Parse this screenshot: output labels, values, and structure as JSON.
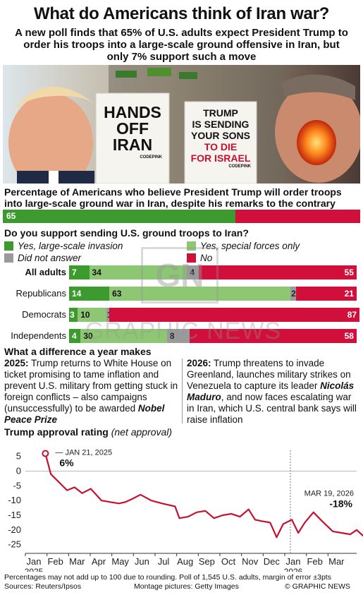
{
  "title": "What do Americans think of Iran war?",
  "subtitle": "A new poll finds that 65% of U.S. adults expect President Trump to order his troops into a large-scale ground offensive in Iran, but only 7% support such a move",
  "photo": {
    "sign1": [
      "HANDS",
      "OFF",
      "IRAN"
    ],
    "sign1_credit": "CODEPINK",
    "sign2": [
      "TRUMP",
      "IS SENDING",
      "YOUR SONS",
      "TO DIE",
      "FOR ISRAEL"
    ],
    "sign2_credit": "CODEPINK"
  },
  "expect": {
    "heading": "Percentage of Americans who believe President Trump will order troops into large-scale ground war in Iran, despite his remarks to the contrary",
    "value": 65,
    "label": "65"
  },
  "support": {
    "heading": "Do you support sending U.S. ground troops to Iran?",
    "legend": {
      "large": "Yes, large-scale invasion",
      "special": "Yes, special forces only",
      "noanswer": "Did not answer",
      "no": "No"
    },
    "colors": {
      "large": "#3c9a2f",
      "special": "#8ec774",
      "noanswer": "#9a9a9a",
      "no": "#d0103a"
    },
    "rows": [
      {
        "group": "All adults",
        "large": 7,
        "special": 34,
        "noanswer": 4,
        "no": 55
      },
      {
        "group": "Republicans",
        "large": 14,
        "special": 63,
        "noanswer": 2,
        "no": 21
      },
      {
        "group": "Democrats",
        "large": 3,
        "special": 10,
        "noanswer": 1,
        "no": 87
      },
      {
        "group": "Independents",
        "large": 4,
        "special": 30,
        "noanswer": 8,
        "no": 58
      }
    ]
  },
  "watermark": {
    "logo": "GN",
    "text": "GRAPHIC NEWS"
  },
  "year_diff": {
    "heading": "What a difference a year makes",
    "left_year": "2025:",
    "left_text": "Trump returns to White House on ticket promising to tame inflation and prevent U.S. military from getting stuck in foreign conflicts – also campaigns (unsuccessfully) to be awarded",
    "left_em": "Nobel Peace Prize",
    "right_year": "2026:",
    "right_text1": "Trump threatens to invade Greenland, launches military strikes on Venezuela to capture its leader",
    "right_em": "Nicolás Maduro",
    "right_text2": ", and now faces escalating war in Iran, which U.S. central bank says will raise inflation"
  },
  "approval": {
    "heading": "Trump approval rating",
    "heading_note": "(net approval)"
  },
  "chart_data": {
    "type": "line",
    "title": "Trump approval rating (net approval)",
    "yticks": [
      5,
      0,
      -5,
      -10,
      -15,
      -20,
      -25
    ],
    "ylim": [
      -27,
      9
    ],
    "grid": false,
    "xticks": [
      "Jan",
      "Feb",
      "Mar",
      "Apr",
      "May",
      "Jun",
      "Jul",
      "Aug",
      "Sep",
      "Oct",
      "Nov",
      "Dec",
      "Jan",
      "Feb",
      "Mar"
    ],
    "xtick_years": {
      "0": "2025",
      "12": "2026"
    },
    "series": [
      {
        "color": "#c8102e",
        "points": [
          [
            0.6,
            6
          ],
          [
            0.85,
            -1
          ],
          [
            1.6,
            -6.5
          ],
          [
            1.95,
            -5.5
          ],
          [
            2.3,
            -7.5
          ],
          [
            2.7,
            -6
          ],
          [
            3.2,
            -10
          ],
          [
            3.6,
            -10.5
          ],
          [
            4,
            -11
          ],
          [
            4.3,
            -10.5
          ],
          [
            4.6,
            -9.5
          ],
          [
            5,
            -8
          ],
          [
            5.5,
            -10
          ],
          [
            6,
            -11
          ],
          [
            6.6,
            -12
          ],
          [
            6.8,
            -16
          ],
          [
            7.2,
            -15.5
          ],
          [
            7.6,
            -14
          ],
          [
            8,
            -13.5
          ],
          [
            8.4,
            -16
          ],
          [
            8.8,
            -15
          ],
          [
            9.2,
            -14.5
          ],
          [
            9.6,
            -15.5
          ],
          [
            10,
            -13
          ],
          [
            10.3,
            -16.5
          ],
          [
            10.6,
            -17
          ],
          [
            11,
            -17.5
          ],
          [
            11.3,
            -22.5
          ],
          [
            11.6,
            -18
          ],
          [
            12,
            -16.5
          ],
          [
            12.3,
            -21
          ],
          [
            12.6,
            -17.5
          ],
          [
            13,
            -14
          ],
          [
            13.4,
            -17
          ],
          [
            13.9,
            -20.5
          ],
          [
            14.3,
            -21
          ],
          [
            14.7,
            -21.5
          ],
          [
            15,
            -20
          ],
          [
            15.3,
            -22
          ],
          [
            15.6,
            -20.5
          ],
          [
            15.9,
            -19
          ],
          [
            16.15,
            -18
          ]
        ]
      }
    ],
    "annotations": [
      {
        "text": "JAN 21, 2025",
        "value": "6%"
      },
      {
        "text": "MAR 19, 2026",
        "value": "-18%"
      }
    ]
  },
  "footer": {
    "note": "Percentages may not add up to 100 due to rounding. Poll of 1,545 U.S. adults, margin of error ±3pts",
    "sources": "Sources: Reuters/Ipsos",
    "pictures": "Montage pictures: Getty Images",
    "credit": "© GRAPHIC NEWS"
  }
}
